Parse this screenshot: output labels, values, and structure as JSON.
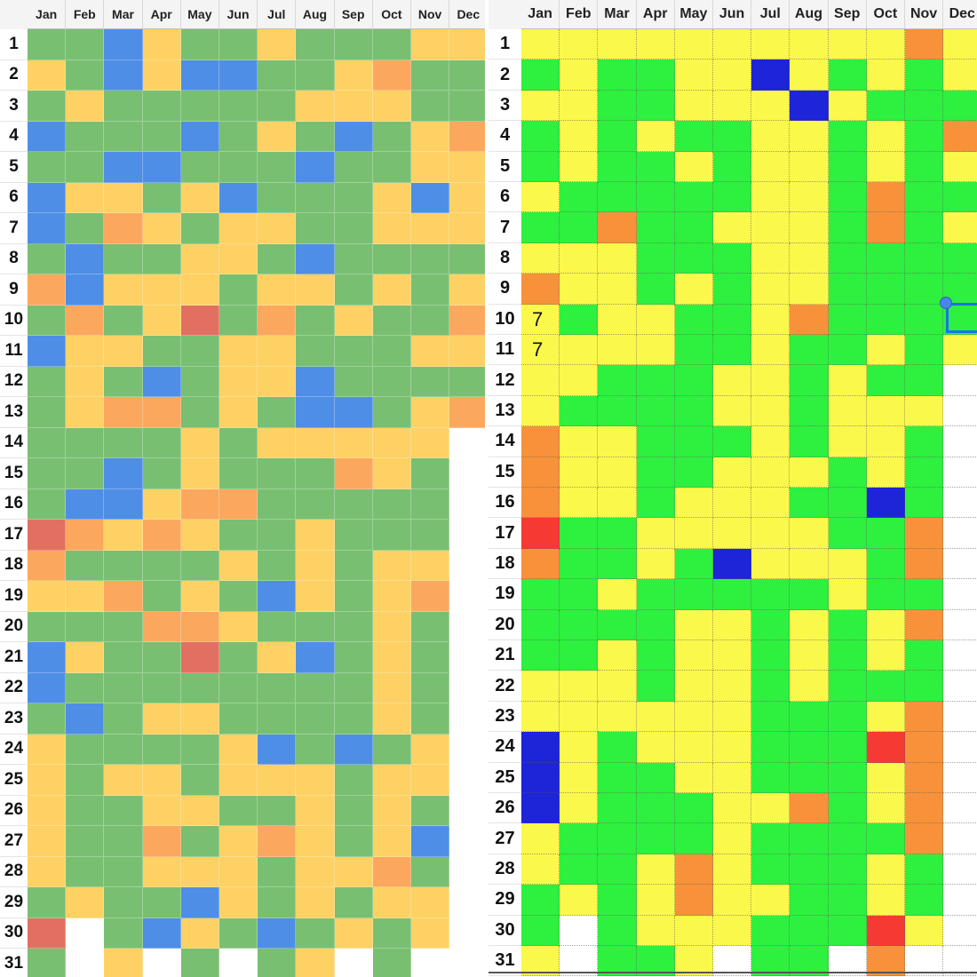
{
  "months": [
    "Jan",
    "Feb",
    "Mar",
    "Apr",
    "May",
    "Jun",
    "Jul",
    "Aug",
    "Sep",
    "Oct",
    "Nov",
    "Dec"
  ],
  "days": [
    "1",
    "2",
    "3",
    "4",
    "5",
    "6",
    "7",
    "8",
    "9",
    "10",
    "11",
    "12",
    "13",
    "14",
    "15",
    "16",
    "17",
    "18",
    "19",
    "20",
    "21",
    "22",
    "23",
    "24",
    "25",
    "26",
    "27",
    "28",
    "29",
    "30",
    "31"
  ],
  "left_sheet": {
    "palette": {
      "G": "#79bf72",
      "Y": "#fdd163",
      "B": "#4f8ee6",
      "O": "#fba85e",
      "R": "#e27062",
      "W": "#ffffff"
    },
    "rows": [
      "GGBYGGYGGGYY",
      "YGBYBBGGYOGG",
      "GYGGGGGYYYGG",
      "BGGGBGYGBGYO",
      "GGBBGGGBGGYY",
      "BYYGYBGGGYBY",
      "BGOYGYYGGYYY",
      "GBGGYYGBGGGG",
      "OBYYYGYYGYGY",
      "GOGYRGOGYGGO",
      "BYYGGYYGGGYY",
      "GYGBGYYBGGGG",
      "GYOOGYGBBGYO",
      "GGGGYGYYYYYW",
      "GGBGYGGGOYGW",
      "GBBYOOGGGGGW",
      "ROYOYGGYGGGW",
      "OGGGGYGYGYYW",
      "YYOGYGBYGYOW",
      "GGGOOYGGGYGW",
      "BYGGRGYBGYGW",
      "BGGGGGGGGYGW",
      "GBGYYGGGGYGW",
      "YGGGGYBGBGYW",
      "YGYYGYYYGYYW",
      "YGGYYGGYGYGW",
      "YGGOGYOYGYBW",
      "YGGYYYGYYOGW",
      "GYGGBYGYGYYW",
      "RWGBYGBGYGYW",
      "GWYWGWGYWGWW"
    ]
  },
  "right_sheet": {
    "palette": {
      "G": "#2ef03e",
      "Y": "#fbf84c",
      "B": "#1e24d8",
      "O": "#f7923a",
      "R": "#f53a34",
      "W": "#ffffff"
    },
    "rows": [
      "YYYYYYYYYYOY",
      "GYGGYYBYGYGY",
      "YYGGYYYBYGGG",
      "GYGYGGYYGYGO",
      "GYGGYGYYGYGY",
      "YGGGGGYYGOGG",
      "GGOGGYYYGOGY",
      "YYYGGGYYGGGG",
      "OYYGYGYYGGGG",
      "YGYYGGYOGGGG",
      "YYYYGGYGGYGY",
      "YYGGGYYGYGGW",
      "YGGGGYYGYYYW",
      "OYYGGGYGYYGW",
      "OYYGGYYYGYGW",
      "OYYGYYYGGBGW",
      "RGGYYYYYGGOW",
      "OGGYGBYYYGOW",
      "GGYGGGGGYGGW",
      "GGGGYYGYGYOW",
      "GGYGYYGYGYGW",
      "YYYGYYGYGGGW",
      "YYYYYYGGGYOW",
      "BYGYYYGGGROW",
      "BYGGYYGGGYOW",
      "BYGGGYYOGYOW",
      "YGGGGYGGGGOW",
      "YGGYOYGGGYGW",
      "GYGYOYYGGYGW",
      "GWGYYYGGGRYW",
      "YWGGYWGGWOWW"
    ],
    "cell_notes": [
      {
        "row": 9,
        "col": 0,
        "text": "7"
      },
      {
        "row": 10,
        "col": 0,
        "text": "7"
      }
    ]
  }
}
